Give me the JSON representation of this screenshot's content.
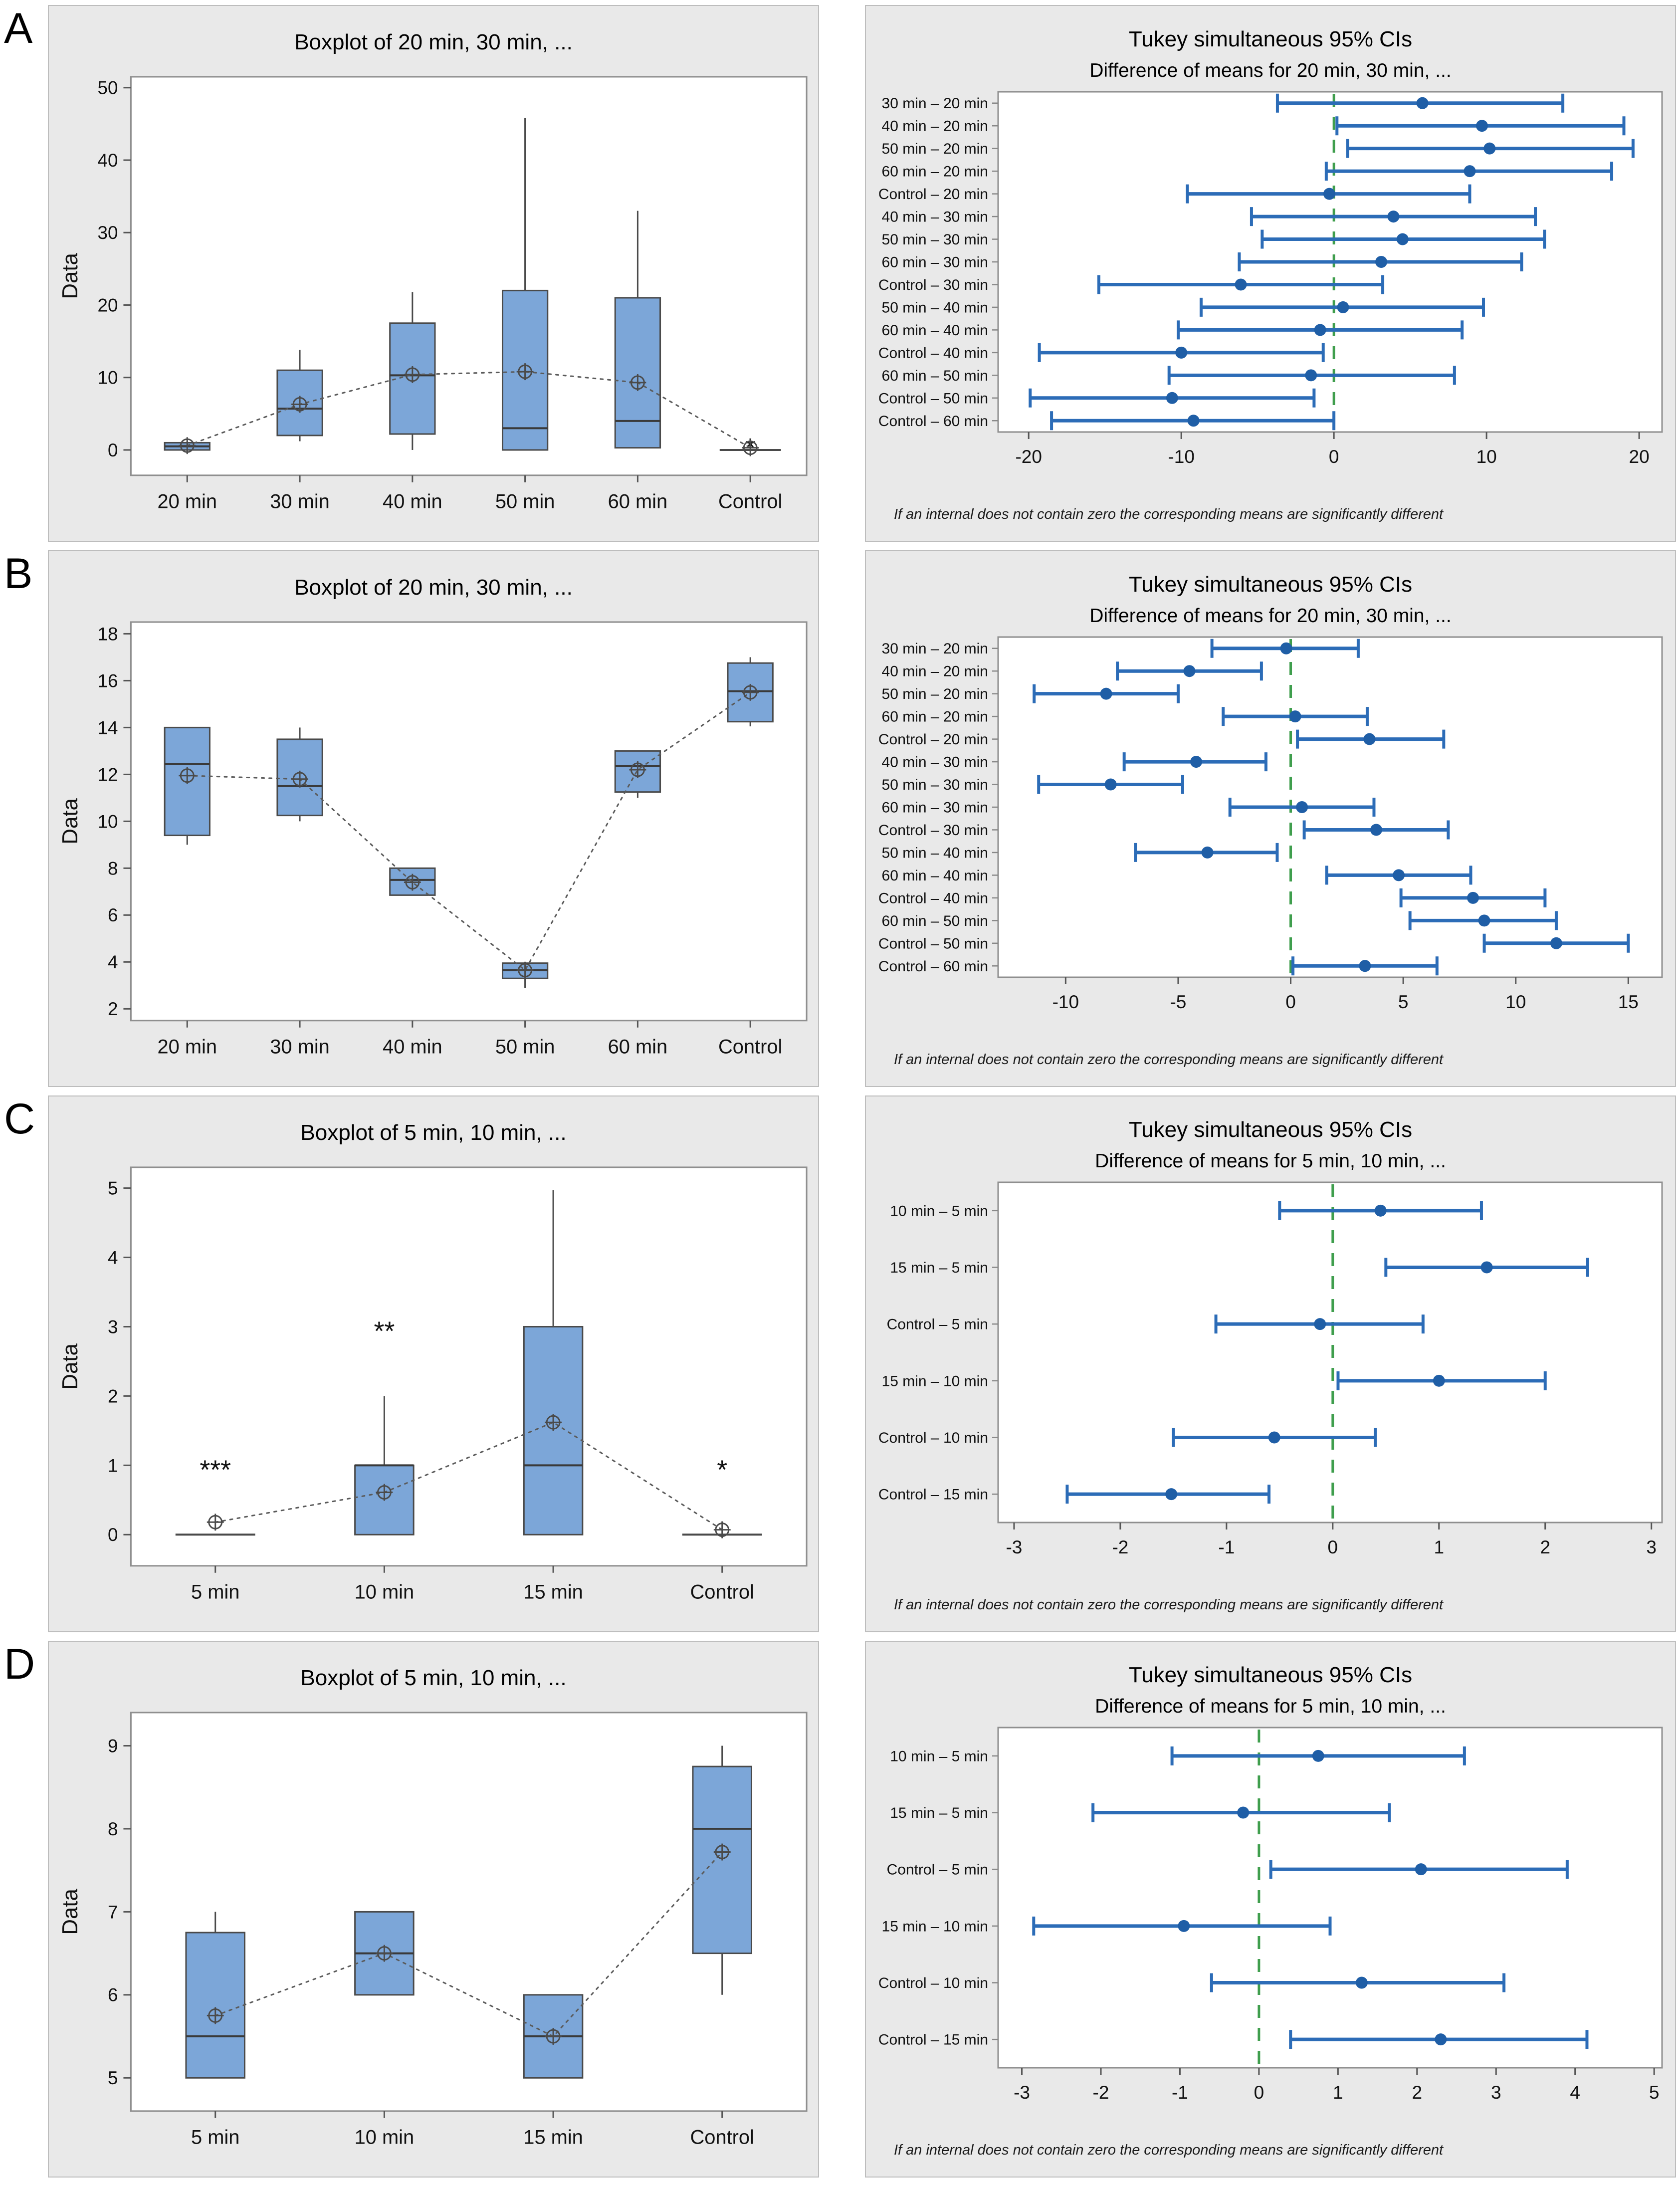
{
  "row_labels": [
    "A",
    "B",
    "C",
    "D"
  ],
  "footnote": "If an internal does not contain zero the corresponding means are significantly different",
  "colors": {
    "panel_bg": "#e9e9e9",
    "panel_border": "#bdbdbd",
    "plot_bg": "#ffffff",
    "plot_border": "#8f8f8f",
    "box_fill": "#7ca6d8",
    "box_edge": "#4a4a4a",
    "median": "#3a3a3a",
    "mean_line": "#5a5a5a",
    "mean_marker": "#4a4a4a",
    "outlier": "#3a3a3a",
    "ci_line": "#2c6cb7",
    "ci_marker": "#1f5ea6",
    "zero_line": "#3f9e4d",
    "tick": "#555555"
  },
  "chart_data": [
    {
      "id": "A-boxplot",
      "type": "boxplot",
      "title": "Boxplot of 20 min, 30 min, ...",
      "ylabel": "Data",
      "ylim": [
        -3.5,
        51.5
      ],
      "yticks": [
        0,
        10,
        20,
        30,
        40,
        50
      ],
      "categories": [
        "20 min",
        "30 min",
        "40 min",
        "50 min",
        "60 min",
        "Control"
      ],
      "boxes": [
        {
          "category": "20 min",
          "q1": 0,
          "median": 0.5,
          "q3": 1.0,
          "whisker_low": 0,
          "whisker_high": 1.3,
          "mean": 0.6,
          "outliers": []
        },
        {
          "category": "30 min",
          "q1": 2.0,
          "median": 5.7,
          "q3": 11.0,
          "whisker_low": 1.2,
          "whisker_high": 13.8,
          "mean": 6.3,
          "outliers": []
        },
        {
          "category": "40 min",
          "q1": 2.2,
          "median": 10.3,
          "q3": 17.5,
          "whisker_low": 0,
          "whisker_high": 21.8,
          "mean": 10.4,
          "outliers": []
        },
        {
          "category": "50 min",
          "q1": 0,
          "median": 3.0,
          "q3": 22.0,
          "whisker_low": 0,
          "whisker_high": 45.8,
          "mean": 10.8,
          "outliers": []
        },
        {
          "category": "60 min",
          "q1": 0.3,
          "median": 4.0,
          "q3": 21.0,
          "whisker_low": 0.3,
          "whisker_high": 33.0,
          "mean": 9.3,
          "outliers": []
        },
        {
          "category": "Control",
          "q1": 0,
          "median": 0,
          "q3": 0,
          "whisker_low": 0,
          "whisker_high": 0,
          "mean": 0.3,
          "outliers": [
            {
              "value": 0.9,
              "symbol": "*"
            }
          ]
        }
      ]
    },
    {
      "id": "A-tukey",
      "type": "interval",
      "title": "Tukey simultaneous 95% CIs",
      "subtitle": "Difference of means for 20 min, 30 min, ...",
      "xlim": [
        -22,
        21.5
      ],
      "xticks": [
        -20,
        -10,
        0,
        10,
        20
      ],
      "zero_line": 0,
      "intervals": [
        {
          "label": "30 min – 20 min",
          "low": -3.7,
          "center": 5.8,
          "high": 15.0
        },
        {
          "label": "40 min – 20 min",
          "low": 0.2,
          "center": 9.7,
          "high": 19.0
        },
        {
          "label": "50 min – 20 min",
          "low": 0.9,
          "center": 10.2,
          "high": 19.6
        },
        {
          "label": "60 min – 20 min",
          "low": -0.5,
          "center": 8.9,
          "high": 18.2
        },
        {
          "label": "Control – 20 min",
          "low": -9.6,
          "center": -0.3,
          "high": 8.9
        },
        {
          "label": "40 min – 30 min",
          "low": -5.4,
          "center": 3.9,
          "high": 13.2
        },
        {
          "label": "50 min – 30 min",
          "low": -4.7,
          "center": 4.5,
          "high": 13.8
        },
        {
          "label": "60 min – 30 min",
          "low": -6.2,
          "center": 3.1,
          "high": 12.3
        },
        {
          "label": "Control – 30 min",
          "low": -15.4,
          "center": -6.1,
          "high": 3.2
        },
        {
          "label": "50 min – 40 min",
          "low": -8.7,
          "center": 0.6,
          "high": 9.8
        },
        {
          "label": "60 min – 40 min",
          "low": -10.2,
          "center": -0.9,
          "high": 8.4
        },
        {
          "label": "Control – 40 min",
          "low": -19.3,
          "center": -10.0,
          "high": -0.7
        },
        {
          "label": "60 min – 50 min",
          "low": -10.8,
          "center": -1.5,
          "high": 7.9
        },
        {
          "label": "Control – 50 min",
          "low": -19.9,
          "center": -10.6,
          "high": -1.3
        },
        {
          "label": "Control – 60 min",
          "low": -18.5,
          "center": -9.2,
          "high": 0.0
        }
      ]
    },
    {
      "id": "B-boxplot",
      "type": "boxplot",
      "title": "Boxplot of 20 min, 30 min, ...",
      "ylabel": "Data",
      "ylim": [
        1.5,
        18.5
      ],
      "yticks": [
        2,
        4,
        6,
        8,
        10,
        12,
        14,
        16,
        18
      ],
      "categories": [
        "20 min",
        "30 min",
        "40 min",
        "50 min",
        "60 min",
        "Control"
      ],
      "boxes": [
        {
          "category": "20 min",
          "q1": 9.4,
          "median": 12.45,
          "q3": 14.0,
          "whisker_low": 9.0,
          "whisker_high": 14.0,
          "mean": 11.95,
          "outliers": []
        },
        {
          "category": "30 min",
          "q1": 10.25,
          "median": 11.5,
          "q3": 13.5,
          "whisker_low": 10.0,
          "whisker_high": 14.0,
          "mean": 11.8,
          "outliers": []
        },
        {
          "category": "40 min",
          "q1": 6.85,
          "median": 7.5,
          "q3": 8.0,
          "whisker_low": 6.85,
          "whisker_high": 8.0,
          "mean": 7.4,
          "outliers": []
        },
        {
          "category": "50 min",
          "q1": 3.3,
          "median": 3.65,
          "q3": 3.95,
          "whisker_low": 2.9,
          "whisker_high": 3.95,
          "mean": 3.65,
          "outliers": []
        },
        {
          "category": "60 min",
          "q1": 11.25,
          "median": 12.35,
          "q3": 13.0,
          "whisker_low": 11.0,
          "whisker_high": 13.0,
          "mean": 12.2,
          "outliers": []
        },
        {
          "category": "Control",
          "q1": 14.25,
          "median": 15.55,
          "q3": 16.75,
          "whisker_low": 14.05,
          "whisker_high": 17.0,
          "mean": 15.5,
          "outliers": []
        }
      ]
    },
    {
      "id": "B-tukey",
      "type": "interval",
      "title": "Tukey simultaneous 95% CIs",
      "subtitle": "Difference of means for 20 min, 30 min, ...",
      "xlim": [
        -13,
        16.5
      ],
      "xticks": [
        -10,
        -5,
        0,
        5,
        10,
        15
      ],
      "zero_line": 0,
      "intervals": [
        {
          "label": "30 min – 20 min",
          "low": -3.5,
          "center": -0.2,
          "high": 3.0
        },
        {
          "label": "40 min – 20 min",
          "low": -7.7,
          "center": -4.5,
          "high": -1.3
        },
        {
          "label": "50 min – 20 min",
          "low": -11.4,
          "center": -8.2,
          "high": -5.0
        },
        {
          "label": "60 min – 20 min",
          "low": -3.0,
          "center": 0.2,
          "high": 3.4
        },
        {
          "label": "Control – 20 min",
          "low": 0.3,
          "center": 3.5,
          "high": 6.8
        },
        {
          "label": "40 min – 30 min",
          "low": -7.4,
          "center": -4.2,
          "high": -1.1
        },
        {
          "label": "50 min – 30 min",
          "low": -11.2,
          "center": -8.0,
          "high": -4.8
        },
        {
          "label": "60 min – 30 min",
          "low": -2.7,
          "center": 0.5,
          "high": 3.7
        },
        {
          "label": "Control – 30 min",
          "low": 0.6,
          "center": 3.8,
          "high": 7.0
        },
        {
          "label": "50 min – 40 min",
          "low": -6.9,
          "center": -3.7,
          "high": -0.6
        },
        {
          "label": "60 min – 40 min",
          "low": 1.6,
          "center": 4.8,
          "high": 8.0
        },
        {
          "label": "Control – 40 min",
          "low": 4.9,
          "center": 8.1,
          "high": 11.3
        },
        {
          "label": "60 min – 50 min",
          "low": 5.3,
          "center": 8.6,
          "high": 11.8
        },
        {
          "label": "Control – 50 min",
          "low": 8.6,
          "center": 11.8,
          "high": 15.0
        },
        {
          "label": "Control – 60 min",
          "low": 0.1,
          "center": 3.3,
          "high": 6.5
        }
      ]
    },
    {
      "id": "C-boxplot",
      "type": "boxplot",
      "title": "Boxplot of 5 min, 10 min, ...",
      "ylabel": "Data",
      "ylim": [
        -0.45,
        5.3
      ],
      "yticks": [
        0,
        1,
        2,
        3,
        4,
        5
      ],
      "categories": [
        "5 min",
        "10 min",
        "15 min",
        "Control"
      ],
      "boxes": [
        {
          "category": "5 min",
          "q1": 0,
          "median": 0,
          "q3": 0,
          "whisker_low": 0,
          "whisker_high": 0,
          "mean": 0.18,
          "outliers": [
            {
              "value": 1,
              "symbol": "***"
            }
          ]
        },
        {
          "category": "10 min",
          "q1": 0,
          "median": 1.0,
          "q3": 1.0,
          "whisker_low": 0,
          "whisker_high": 2.0,
          "mean": 0.61,
          "outliers": [
            {
              "value": 3,
              "symbol": "**"
            }
          ]
        },
        {
          "category": "15 min",
          "q1": 0,
          "median": 1.0,
          "q3": 3.0,
          "whisker_low": 0,
          "whisker_high": 4.97,
          "mean": 1.62,
          "outliers": []
        },
        {
          "category": "Control",
          "q1": 0,
          "median": 0,
          "q3": 0,
          "whisker_low": 0,
          "whisker_high": 0,
          "mean": 0.07,
          "outliers": [
            {
              "value": 1,
              "symbol": "*"
            }
          ]
        }
      ]
    },
    {
      "id": "C-tukey",
      "type": "interval",
      "title": "Tukey simultaneous 95% CIs",
      "subtitle": "Difference of means for 5 min, 10 min, ...",
      "xlim": [
        -3.15,
        3.1
      ],
      "xticks": [
        -3,
        -2,
        -1,
        0,
        1,
        2,
        3
      ],
      "zero_line": 0,
      "intervals": [
        {
          "label": "10 min –  5 min",
          "low": -0.5,
          "center": 0.45,
          "high": 1.4
        },
        {
          "label": "15 min –  5 min",
          "low": 0.5,
          "center": 1.45,
          "high": 2.4
        },
        {
          "label": "Control –  5 min",
          "low": -1.1,
          "center": -0.12,
          "high": 0.85
        },
        {
          "label": "15 min – 10 min",
          "low": 0.05,
          "center": 1.0,
          "high": 2.0
        },
        {
          "label": "Control – 10 min",
          "low": -1.5,
          "center": -0.55,
          "high": 0.4
        },
        {
          "label": "Control – 15 min",
          "low": -2.5,
          "center": -1.52,
          "high": -0.6
        }
      ]
    },
    {
      "id": "D-boxplot",
      "type": "boxplot",
      "title": "Boxplot of 5 min, 10 min, ...",
      "ylabel": "Data",
      "ylim": [
        4.6,
        9.4
      ],
      "yticks": [
        5,
        6,
        7,
        8,
        9
      ],
      "categories": [
        "5 min",
        "10 min",
        "15 min",
        "Control"
      ],
      "boxes": [
        {
          "category": "5 min",
          "q1": 5.0,
          "median": 5.5,
          "q3": 6.75,
          "whisker_low": 5.0,
          "whisker_high": 7.0,
          "mean": 5.75,
          "outliers": []
        },
        {
          "category": "10 min",
          "q1": 6.0,
          "median": 6.5,
          "q3": 7.0,
          "whisker_low": 6.0,
          "whisker_high": 7.0,
          "mean": 6.5,
          "outliers": []
        },
        {
          "category": "15 min",
          "q1": 5.0,
          "median": 5.5,
          "q3": 6.0,
          "whisker_low": 5.0,
          "whisker_high": 6.0,
          "mean": 5.5,
          "outliers": []
        },
        {
          "category": "Control",
          "q1": 6.5,
          "median": 8.0,
          "q3": 8.75,
          "whisker_low": 6.0,
          "whisker_high": 9.0,
          "mean": 7.72,
          "outliers": []
        }
      ]
    },
    {
      "id": "D-tukey",
      "type": "interval",
      "title": "Tukey simultaneous 95% CIs",
      "subtitle": "Difference of means for 5 min, 10 min, ...",
      "xlim": [
        -3.3,
        5.1
      ],
      "xticks": [
        -3,
        -2,
        -1,
        0,
        1,
        2,
        3,
        4,
        5
      ],
      "zero_line": 0,
      "intervals": [
        {
          "label": "10 min –  5 min",
          "low": -1.1,
          "center": 0.75,
          "high": 2.6
        },
        {
          "label": "15 min –  5 min",
          "low": -2.1,
          "center": -0.2,
          "high": 1.65
        },
        {
          "label": "Control –  5 min",
          "low": 0.15,
          "center": 2.05,
          "high": 3.9
        },
        {
          "label": "15 min – 10 min",
          "low": -2.85,
          "center": -0.95,
          "high": 0.9
        },
        {
          "label": "Control – 10 min",
          "low": -0.6,
          "center": 1.3,
          "high": 3.1
        },
        {
          "label": "Control – 15 min",
          "low": 0.4,
          "center": 2.3,
          "high": 4.15
        }
      ]
    }
  ]
}
